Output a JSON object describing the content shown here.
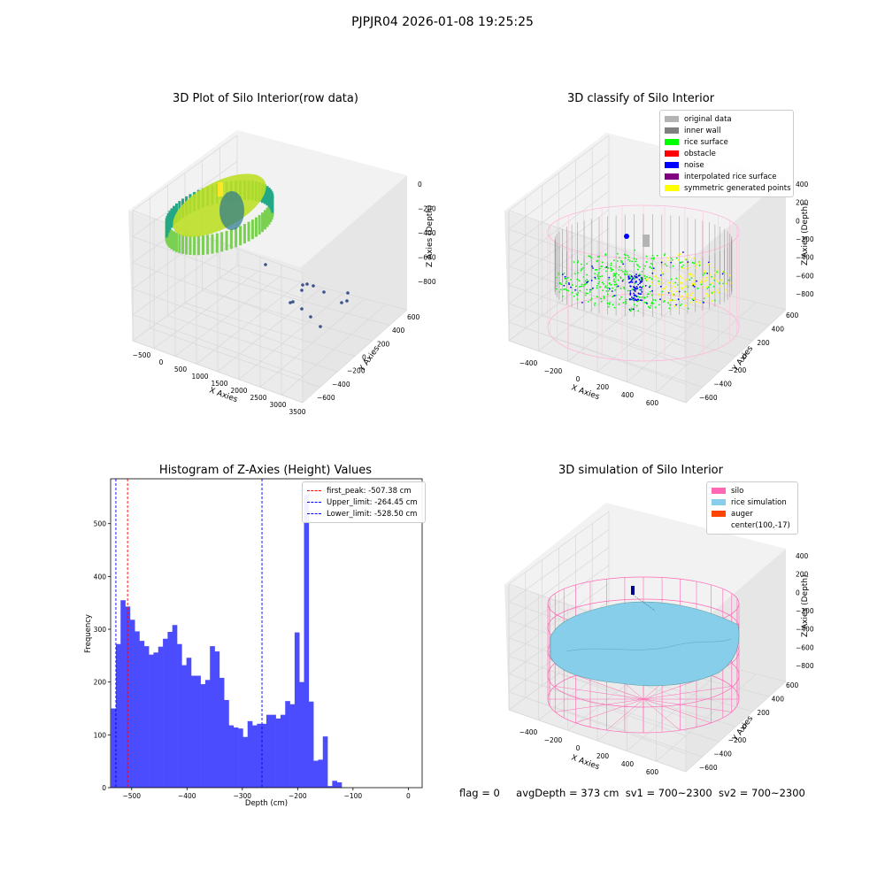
{
  "suptitle": "PJPJR04 2026-01-08 19:25:25",
  "colors": {
    "original_data": "#b4b4b4",
    "inner_wall": "#808080",
    "rice_surface": "#00ff00",
    "obstacle": "#ff0000",
    "noise": "#0000ff",
    "interpolated_rice_surface": "#800080",
    "symmetric_generated_points": "#ffff00",
    "silo": "#ff69b4",
    "rice_simulation": "#87ceeb",
    "auger": "#ff4500",
    "histogram_bar": "#4c4cff",
    "first_peak_line": "#ff0000",
    "limit_line": "#0000ff"
  },
  "footer": {
    "flag": "flag = 0",
    "avgDepth": "avgDepth = 373 cm",
    "sv1": "sv1 = 700~2300",
    "sv2": "sv2 = 700~2300"
  },
  "chart_data": [
    {
      "type": "scatter",
      "title": "3D Plot of Silo Interior(row data)",
      "xlabel": "X Axies",
      "ylabel": "Y Axies",
      "zlabel": "Z Axies (Depth)",
      "x_ticks": [
        "−500",
        "0",
        "500",
        "1000",
        "1500",
        "2000",
        "2500",
        "3000",
        "3500"
      ],
      "y_ticks": [
        "−600",
        "−400",
        "−200",
        "0",
        "200",
        "400",
        "600"
      ],
      "z_ticks": [
        "−800",
        "−600",
        "−400",
        "−200",
        "0"
      ]
    },
    {
      "type": "scatter",
      "title": "3D classify of Silo Interior",
      "xlabel": "X Axies",
      "ylabel": "Y Axies",
      "zlabel": "Z Axies (Depth)",
      "x_ticks": [
        "−400",
        "−200",
        "0",
        "200",
        "400",
        "600"
      ],
      "y_ticks": [
        "−600",
        "−400",
        "−200",
        "0",
        "200",
        "400",
        "600"
      ],
      "z_ticks": [
        "−800",
        "−600",
        "−400",
        "−200",
        "0",
        "200",
        "400"
      ],
      "legend": [
        {
          "label": "original data",
          "color": "#b4b4b4"
        },
        {
          "label": "inner wall",
          "color": "#808080"
        },
        {
          "label": "rice surface",
          "color": "#00ff00"
        },
        {
          "label": "obstacle",
          "color": "#ff0000"
        },
        {
          "label": "noise",
          "color": "#0000ff"
        },
        {
          "label": "interpolated rice surface",
          "color": "#800080"
        },
        {
          "label": "symmetric generated points",
          "color": "#ffff00"
        }
      ]
    },
    {
      "type": "bar",
      "title": "Histogram of Z-Axies (Height) Values",
      "xlabel": "Depth (cm)",
      "ylabel": "Frequency",
      "xlim": [
        -538,
        25
      ],
      "ylim": [
        0,
        585
      ],
      "x_ticks": [
        -500,
        -400,
        -300,
        -200,
        -100,
        0
      ],
      "y_ticks": [
        0,
        100,
        200,
        300,
        400,
        500
      ],
      "bin_start": -537,
      "bin_width": 8.5,
      "values": [
        150,
        272,
        355,
        343,
        318,
        296,
        278,
        268,
        252,
        256,
        267,
        282,
        295,
        308,
        272,
        232,
        246,
        212,
        212,
        196,
        204,
        268,
        258,
        208,
        166,
        118,
        114,
        112,
        96,
        126,
        118,
        121,
        121,
        138,
        138,
        131,
        138,
        164,
        158,
        294,
        200,
        555,
        163,
        51,
        53,
        97,
        3,
        13,
        10
      ],
      "legend": [
        {
          "label": "first_peak: -507.38 cm",
          "color": "#ff0000"
        },
        {
          "label": "Upper_limit: -264.45 cm",
          "color": "#0000ff"
        },
        {
          "label": "Lower_limit: -528.50 cm",
          "color": "#0000ff"
        }
      ],
      "vlines": {
        "first_peak": -507.38,
        "upper_limit": -264.45,
        "lower_limit": -528.5
      }
    },
    {
      "type": "area",
      "title": "3D simulation of Silo Interior",
      "xlabel": "X Axies",
      "ylabel": "Y Axies",
      "zlabel": "Z Axies (Depth)",
      "x_ticks": [
        "−400",
        "−200",
        "0",
        "200",
        "400",
        "600"
      ],
      "y_ticks": [
        "−600",
        "−400",
        "−200",
        "0",
        "200",
        "400",
        "600"
      ],
      "z_ticks": [
        "−800",
        "−600",
        "−400",
        "−200",
        "0",
        "200",
        "400"
      ],
      "legend": [
        {
          "label": "silo",
          "color": "#ff69b4"
        },
        {
          "label": "rice simulation",
          "color": "#87ceeb"
        },
        {
          "label": "auger",
          "color": "#ff4500"
        },
        {
          "label": "center(100,-17)",
          "color": ""
        }
      ]
    }
  ]
}
